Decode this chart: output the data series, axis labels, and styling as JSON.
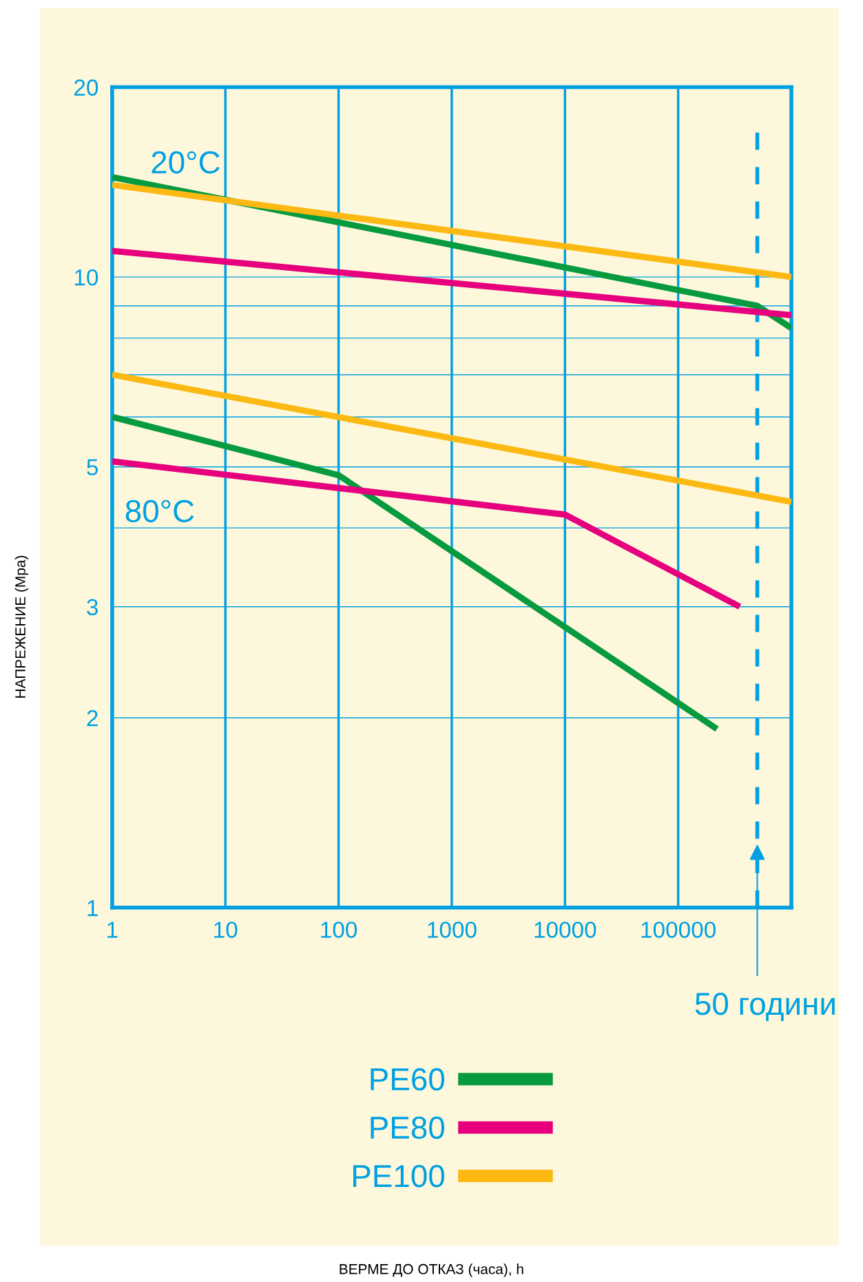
{
  "chart_data": {
    "type": "line",
    "ylabel": "НАПРЕЖЕНИЕ (Mpa)",
    "log": "xy",
    "grid": true,
    "legend": "bottom",
    "line_style": "solid",
    "marker": "none",
    "xlim": [
      1,
      1000000
    ],
    "xticks": [
      1,
      10,
      100,
      1000,
      10000,
      100000
    ],
    "ylim": [
      1,
      20
    ],
    "yticks": [
      1,
      2,
      3,
      {
        "value": 4,
        "label": null
      },
      5,
      {
        "value": 6,
        "label": null
      },
      {
        "value": 7,
        "label": null
      },
      {
        "value": 8,
        "label": null
      },
      {
        "value": 9,
        "label": null
      },
      10,
      20
    ],
    "series": [
      {
        "name": "PE60",
        "color": "#079a3f",
        "x": [
          1,
          500000,
          1000000
        ],
        "values": [
          14.4,
          9.0,
          8.3
        ]
      },
      {
        "name": "PE80",
        "color": "#e6007e",
        "x": [
          1,
          1000000
        ],
        "values": [
          11.0,
          8.7
        ]
      },
      {
        "name": "PE100",
        "color": "#fdb913",
        "x": [
          1,
          1000000
        ],
        "values": [
          14.0,
          10.0
        ]
      },
      {
        "color": "#079a3f",
        "x": [
          1,
          100,
          220000
        ],
        "values": [
          6.0,
          4.85,
          1.92
        ]
      },
      {
        "color": "#e6007e",
        "x": [
          1,
          10000,
          350000
        ],
        "values": [
          5.1,
          4.2,
          3.0
        ]
      },
      {
        "color": "#fdb913",
        "x": [
          1,
          1000000
        ],
        "values": [
          7.0,
          4.4
        ]
      }
    ],
    "ref_lines": [
      {
        "axis": "x",
        "value": 500000,
        "label": "50 години",
        "color": "#00a0e3",
        "line_style": "dashed"
      }
    ],
    "annotations": [
      "20°C",
      "80°C",
      "ВЕРМЕ ДО ОТКАЗ (часа), h"
    ]
  }
}
